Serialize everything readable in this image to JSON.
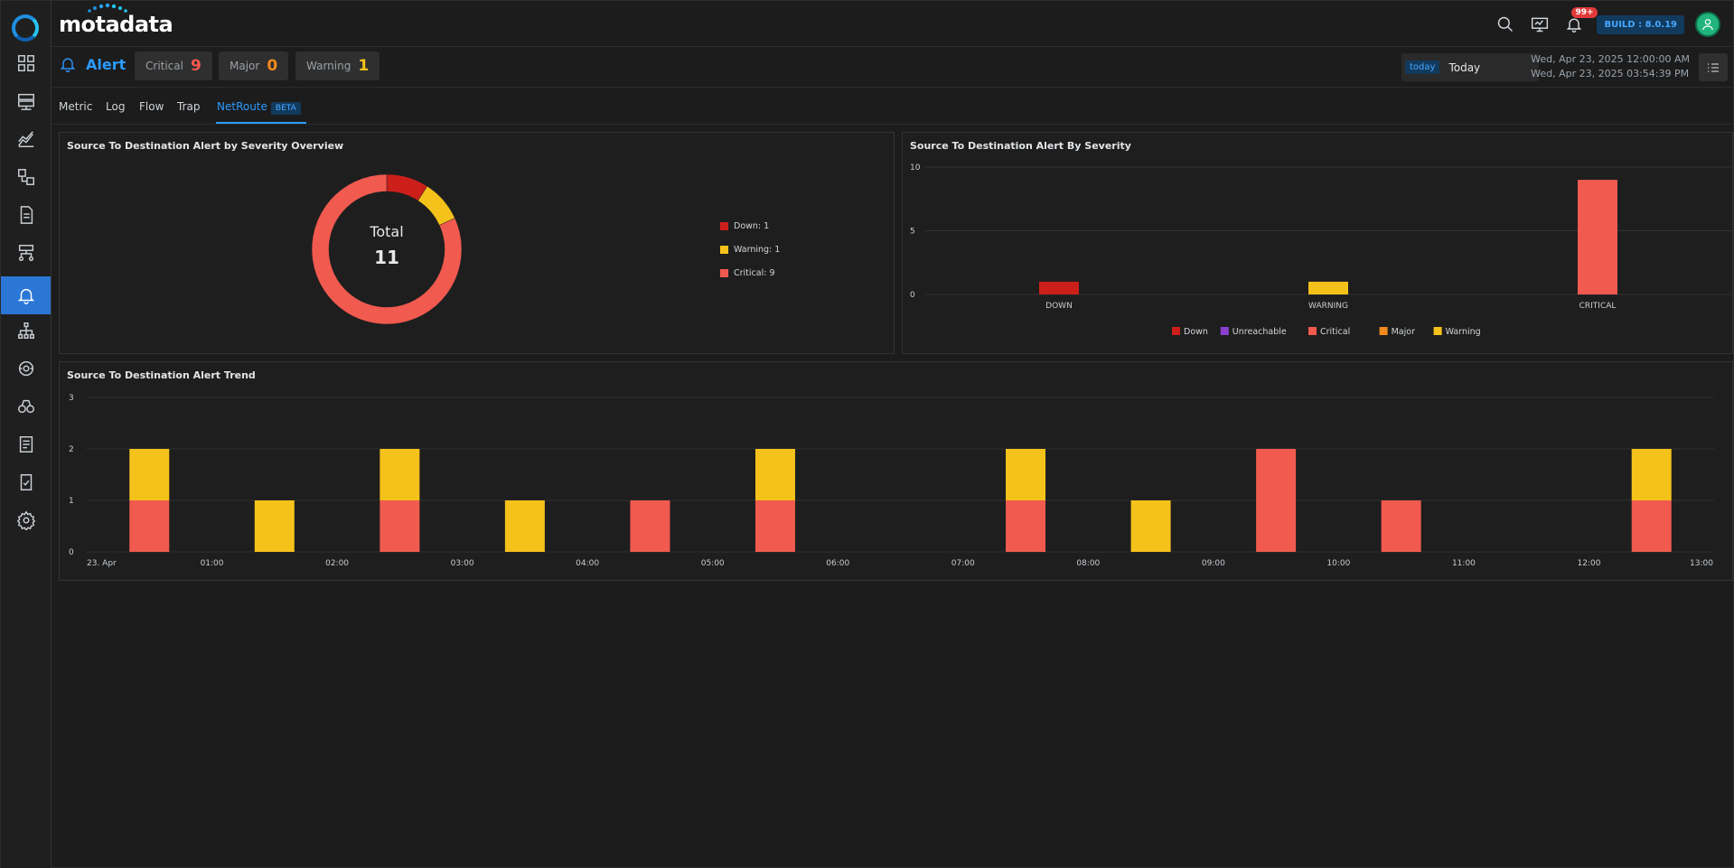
{
  "app": {
    "logo": "motadata",
    "build": "BUILD : 8.0.19",
    "notification_count": "99+"
  },
  "sidebar": {
    "items": [
      {
        "name": "dashboard-icon"
      },
      {
        "name": "inventory-icon"
      },
      {
        "name": "metric-explorer-icon"
      },
      {
        "name": "topology-icon"
      },
      {
        "name": "log-icon"
      },
      {
        "name": "flow-icon"
      },
      {
        "name": "alert-icon",
        "active": true
      },
      {
        "name": "network-icon"
      },
      {
        "name": "netroute-icon"
      },
      {
        "name": "explorer-icon"
      },
      {
        "name": "report-icon"
      },
      {
        "name": "audit-icon"
      },
      {
        "name": "settings-icon"
      }
    ]
  },
  "header": {
    "title": "Alert",
    "severity_chips": [
      {
        "label": "Critical",
        "count": "9",
        "color": "#f15a4f"
      },
      {
        "label": "Major",
        "count": "0",
        "color": "#f28a1d"
      },
      {
        "label": "Warning",
        "count": "1",
        "color": "#f5c21b"
      }
    ],
    "date_tag": "today",
    "date_value": "Today",
    "range_start": "Wed, Apr 23, 2025 12:00:00 AM",
    "range_end": "Wed, Apr 23, 2025 03:54:39 PM"
  },
  "tabs": [
    {
      "label": "Metric"
    },
    {
      "label": "Log"
    },
    {
      "label": "Flow"
    },
    {
      "label": "Trap"
    },
    {
      "label": "NetRoute",
      "active": true,
      "badge": "BETA"
    }
  ],
  "colors": {
    "down": "#cc1f1a",
    "unreachable": "#8b3fd1",
    "critical": "#f15a4f",
    "major": "#f28a1d",
    "warning": "#f5c21b"
  },
  "panels": {
    "overview": {
      "title": "Source To Destination Alert by Severity Overview"
    },
    "by_severity": {
      "title": "Source To Destination Alert By Severity"
    },
    "trend": {
      "title": "Source To Destination Alert Trend"
    }
  },
  "chart_data": [
    {
      "type": "pie",
      "title": "Source To Destination Alert by Severity Overview",
      "center_label": "Total",
      "center_value": "11",
      "slices": [
        {
          "label": "Down",
          "value": 1,
          "color": "#cc1f1a",
          "legend": "Down: 1"
        },
        {
          "label": "Warning",
          "value": 1,
          "color": "#f5c21b",
          "legend": "Warning: 1"
        },
        {
          "label": "Critical",
          "value": 9,
          "color": "#f15a4f",
          "legend": "Critical: 9"
        }
      ],
      "legend_position": "right"
    },
    {
      "type": "bar",
      "title": "Source To Destination Alert By Severity",
      "categories": [
        "DOWN",
        "WARNING",
        "CRITICAL"
      ],
      "values": [
        1,
        1,
        9
      ],
      "colors": [
        "#cc1f1a",
        "#f5c21b",
        "#f15a4f"
      ],
      "ylim": [
        0,
        10
      ],
      "yticks": [
        "0",
        "5",
        "10"
      ],
      "grid": true,
      "legend": [
        {
          "label": "Down",
          "color": "#cc1f1a"
        },
        {
          "label": "Unreachable",
          "color": "#8b3fd1"
        },
        {
          "label": "Critical",
          "color": "#f15a4f"
        },
        {
          "label": "Major",
          "color": "#f28a1d"
        },
        {
          "label": "Warning",
          "color": "#f5c21b"
        }
      ],
      "legend_position": "bottom"
    },
    {
      "type": "bar",
      "stacked": true,
      "title": "Source To Destination Alert Trend",
      "x_start": "2025-04-23 00:00",
      "x_end": "2025-04-23 13:00",
      "x_tick_labels": [
        "23. Apr",
        "01:00",
        "02:00",
        "03:00",
        "04:00",
        "05:00",
        "06:00",
        "07:00",
        "08:00",
        "09:00",
        "10:00",
        "11:00",
        "12:00",
        "13:00"
      ],
      "bar_slots": [
        "00:30",
        "01:30",
        "02:30",
        "03:30",
        "04:30",
        "05:30",
        "06:30",
        "07:30",
        "08:30",
        "09:30",
        "10:30",
        "11:30",
        "12:30"
      ],
      "series": [
        {
          "name": "Critical",
          "color": "#f15a4f",
          "values": [
            1,
            0,
            1,
            0,
            1,
            1,
            0,
            1,
            0,
            2,
            1,
            0,
            1
          ]
        },
        {
          "name": "Warning",
          "color": "#f5c21b",
          "values": [
            1,
            1,
            1,
            1,
            0,
            1,
            0,
            1,
            1,
            0,
            0,
            0,
            1
          ]
        }
      ],
      "ylim": [
        0,
        3
      ],
      "yticks": [
        "0",
        "1",
        "2",
        "3"
      ],
      "grid": true
    }
  ]
}
